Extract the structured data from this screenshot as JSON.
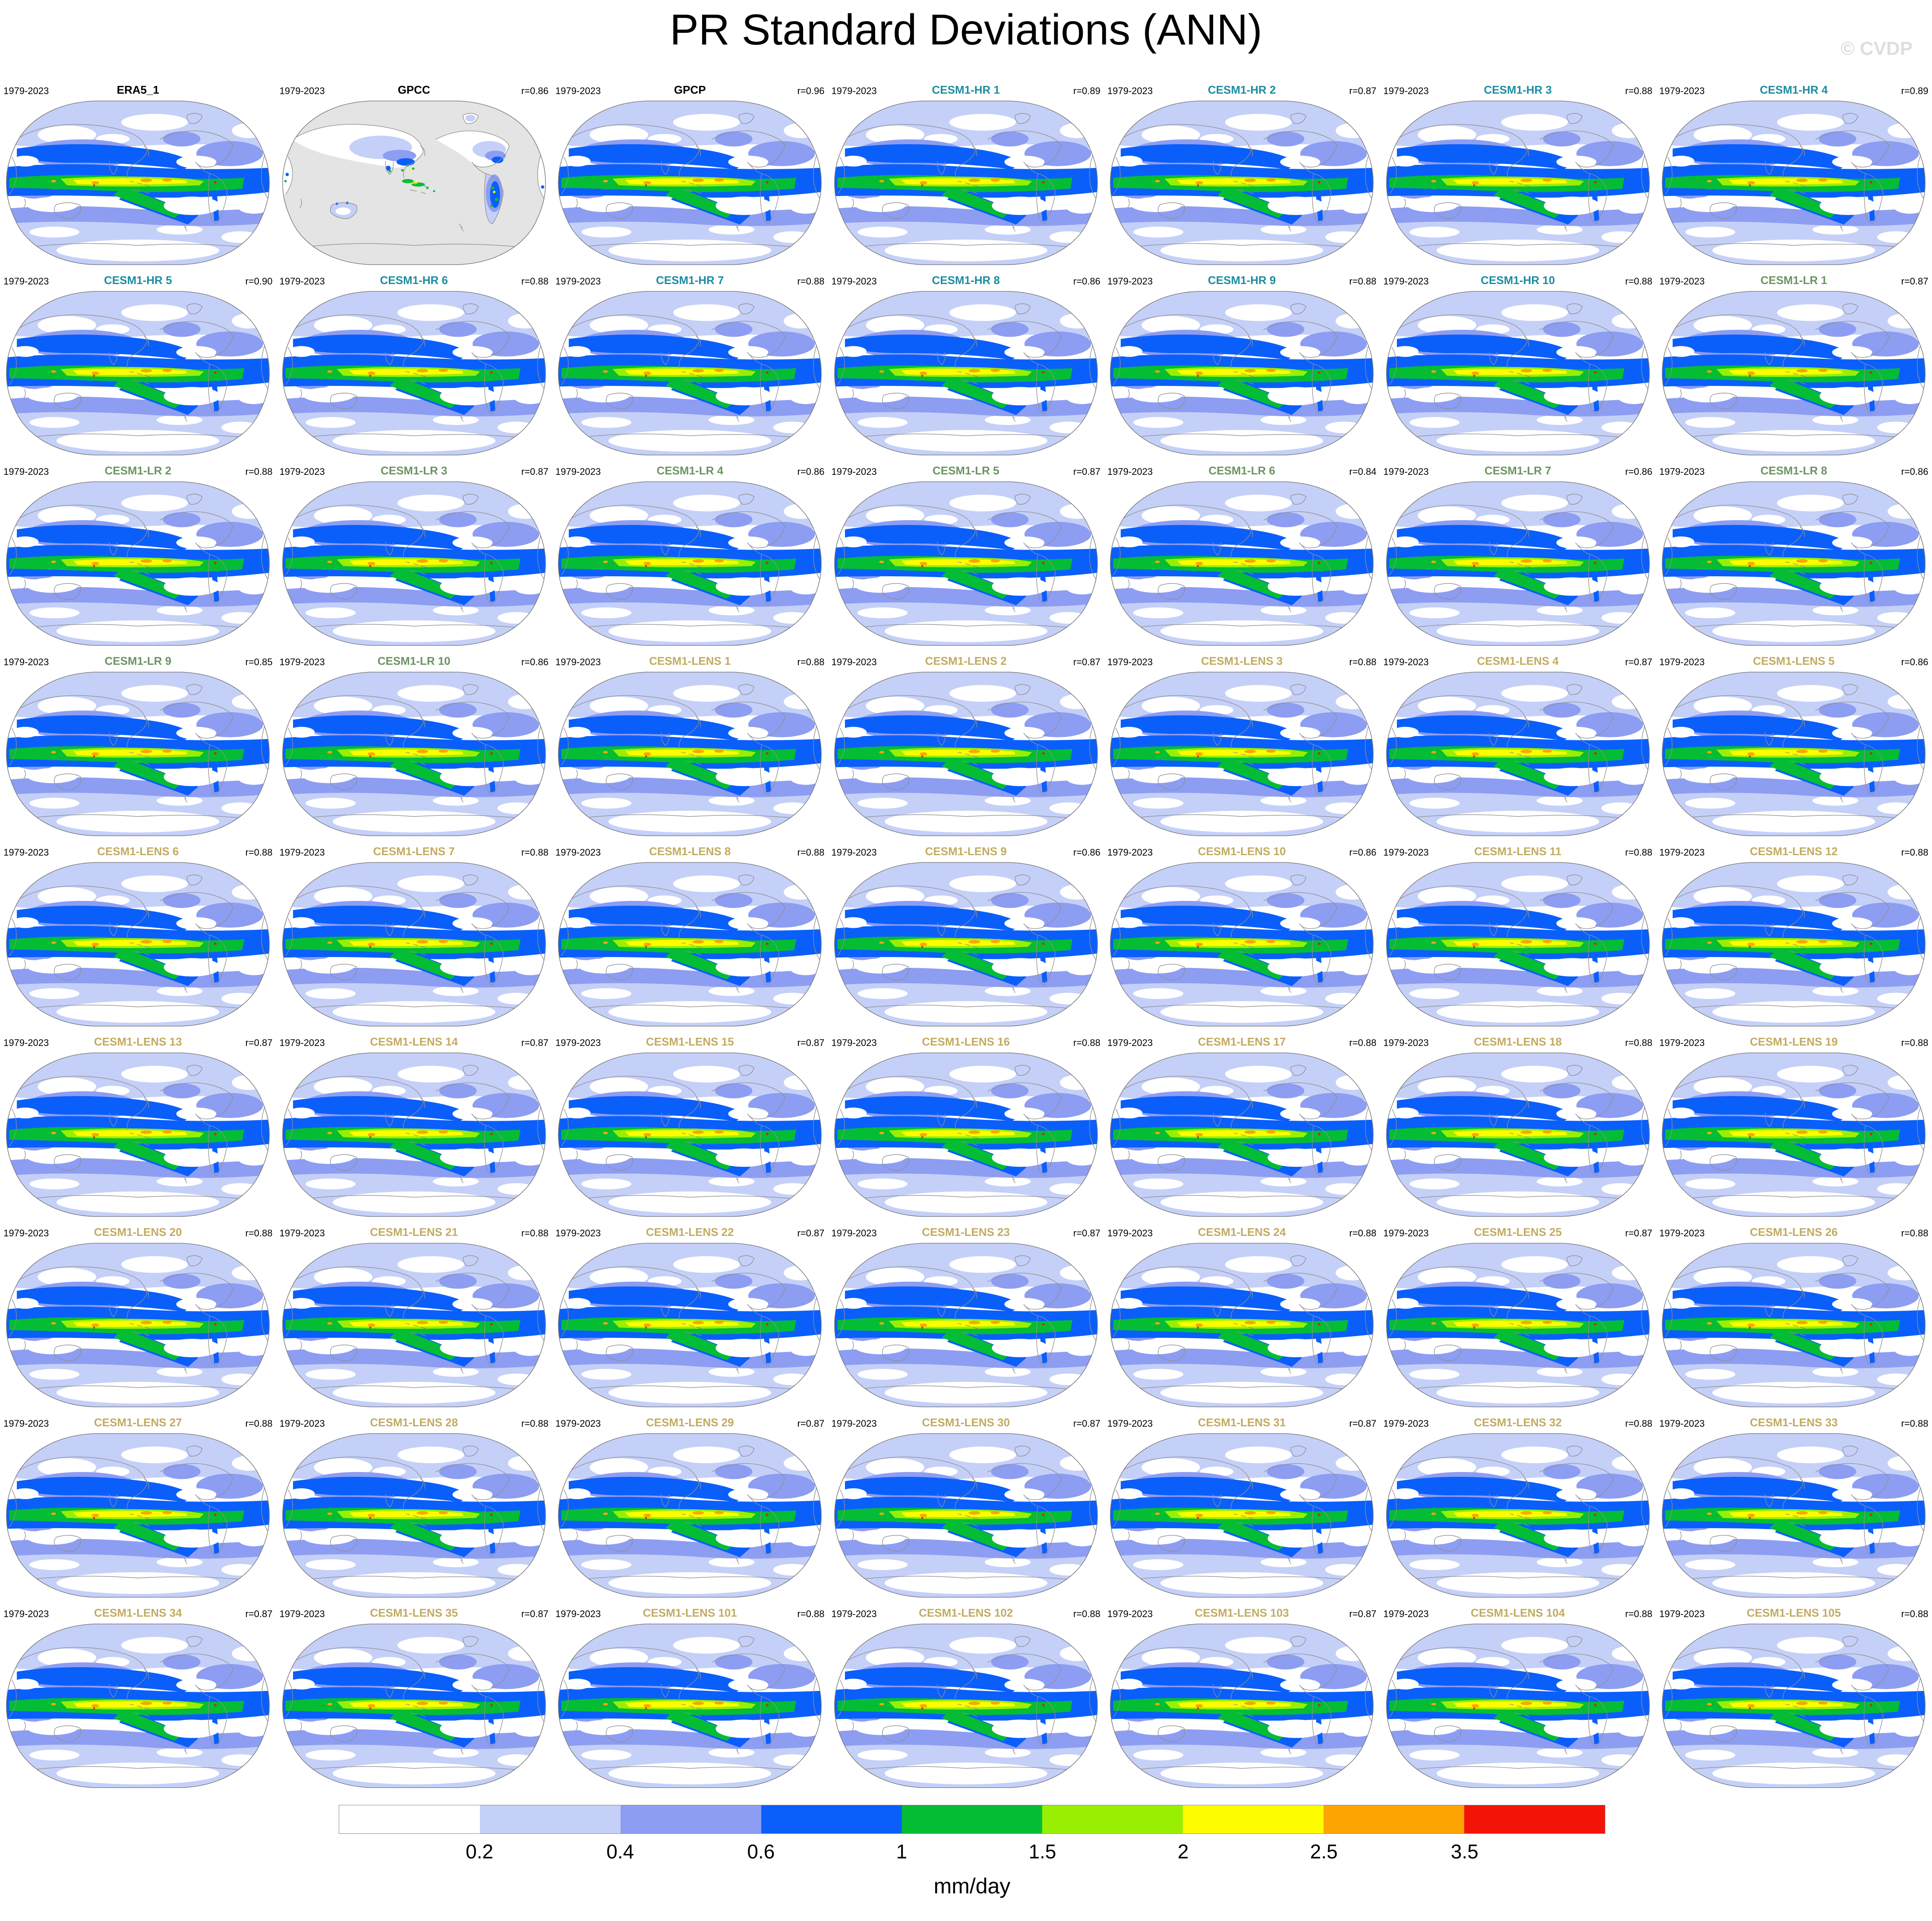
{
  "header": {
    "title": "PR Standard Deviations (ANN)",
    "watermark": "© CVDP"
  },
  "group_colors": {
    "obs": "#000000",
    "hr": "#1d8ca0",
    "lr": "#6b9462",
    "lens": "#c2ab60"
  },
  "map_colors": {
    "ocean_nodata": "#e4e4e4",
    "coastline": "#8f8f8f",
    "outline": "#777777"
  },
  "panels": [
    {
      "label": "ERA5_1",
      "group": "obs",
      "period": "1979-2023",
      "r_text": "",
      "r": null,
      "map_style": "colored"
    },
    {
      "label": "GPCC",
      "group": "obs",
      "period": "1979-2023",
      "r_text": "r=0.86",
      "r": 0.86,
      "map_style": "land"
    },
    {
      "label": "GPCP",
      "group": "obs",
      "period": "1979-2023",
      "r_text": "r=0.96",
      "r": 0.96,
      "map_style": "colored"
    },
    {
      "label": "CESM1-HR 1",
      "group": "hr",
      "period": "1979-2023",
      "r_text": "r=0.89",
      "r": 0.89,
      "map_style": "colored"
    },
    {
      "label": "CESM1-HR 2",
      "group": "hr",
      "period": "1979-2023",
      "r_text": "r=0.87",
      "r": 0.87,
      "map_style": "colored"
    },
    {
      "label": "CESM1-HR 3",
      "group": "hr",
      "period": "1979-2023",
      "r_text": "r=0.88",
      "r": 0.88,
      "map_style": "colored"
    },
    {
      "label": "CESM1-HR 4",
      "group": "hr",
      "period": "1979-2023",
      "r_text": "r=0.89",
      "r": 0.89,
      "map_style": "colored"
    },
    {
      "label": "CESM1-HR 5",
      "group": "hr",
      "period": "1979-2023",
      "r_text": "r=0.90",
      "r": 0.9,
      "map_style": "colored"
    },
    {
      "label": "CESM1-HR 6",
      "group": "hr",
      "period": "1979-2023",
      "r_text": "r=0.88",
      "r": 0.88,
      "map_style": "colored"
    },
    {
      "label": "CESM1-HR 7",
      "group": "hr",
      "period": "1979-2023",
      "r_text": "r=0.88",
      "r": 0.88,
      "map_style": "colored"
    },
    {
      "label": "CESM1-HR 8",
      "group": "hr",
      "period": "1979-2023",
      "r_text": "r=0.86",
      "r": 0.86,
      "map_style": "colored"
    },
    {
      "label": "CESM1-HR 9",
      "group": "hr",
      "period": "1979-2023",
      "r_text": "r=0.88",
      "r": 0.88,
      "map_style": "colored"
    },
    {
      "label": "CESM1-HR 10",
      "group": "hr",
      "period": "1979-2023",
      "r_text": "r=0.88",
      "r": 0.88,
      "map_style": "colored"
    },
    {
      "label": "CESM1-LR 1",
      "group": "lr",
      "period": "1979-2023",
      "r_text": "r=0.87",
      "r": 0.87,
      "map_style": "colored"
    },
    {
      "label": "CESM1-LR 2",
      "group": "lr",
      "period": "1979-2023",
      "r_text": "r=0.88",
      "r": 0.88,
      "map_style": "colored"
    },
    {
      "label": "CESM1-LR 3",
      "group": "lr",
      "period": "1979-2023",
      "r_text": "r=0.87",
      "r": 0.87,
      "map_style": "colored"
    },
    {
      "label": "CESM1-LR 4",
      "group": "lr",
      "period": "1979-2023",
      "r_text": "r=0.86",
      "r": 0.86,
      "map_style": "colored"
    },
    {
      "label": "CESM1-LR 5",
      "group": "lr",
      "period": "1979-2023",
      "r_text": "r=0.87",
      "r": 0.87,
      "map_style": "colored"
    },
    {
      "label": "CESM1-LR 6",
      "group": "lr",
      "period": "1979-2023",
      "r_text": "r=0.84",
      "r": 0.84,
      "map_style": "colored"
    },
    {
      "label": "CESM1-LR 7",
      "group": "lr",
      "period": "1979-2023",
      "r_text": "r=0.86",
      "r": 0.86,
      "map_style": "colored"
    },
    {
      "label": "CESM1-LR 8",
      "group": "lr",
      "period": "1979-2023",
      "r_text": "r=0.86",
      "r": 0.86,
      "map_style": "colored"
    },
    {
      "label": "CESM1-LR 9",
      "group": "lr",
      "period": "1979-2023",
      "r_text": "r=0.85",
      "r": 0.85,
      "map_style": "colored"
    },
    {
      "label": "CESM1-LR 10",
      "group": "lr",
      "period": "1979-2023",
      "r_text": "r=0.86",
      "r": 0.86,
      "map_style": "colored"
    },
    {
      "label": "CESM1-LENS 1",
      "group": "lens",
      "period": "1979-2023",
      "r_text": "r=0.88",
      "r": 0.88,
      "map_style": "colored"
    },
    {
      "label": "CESM1-LENS 2",
      "group": "lens",
      "period": "1979-2023",
      "r_text": "r=0.87",
      "r": 0.87,
      "map_style": "colored"
    },
    {
      "label": "CESM1-LENS 3",
      "group": "lens",
      "period": "1979-2023",
      "r_text": "r=0.88",
      "r": 0.88,
      "map_style": "colored"
    },
    {
      "label": "CESM1-LENS 4",
      "group": "lens",
      "period": "1979-2023",
      "r_text": "r=0.87",
      "r": 0.87,
      "map_style": "colored"
    },
    {
      "label": "CESM1-LENS 5",
      "group": "lens",
      "period": "1979-2023",
      "r_text": "r=0.86",
      "r": 0.86,
      "map_style": "colored"
    },
    {
      "label": "CESM1-LENS 6",
      "group": "lens",
      "period": "1979-2023",
      "r_text": "r=0.88",
      "r": 0.88,
      "map_style": "colored"
    },
    {
      "label": "CESM1-LENS 7",
      "group": "lens",
      "period": "1979-2023",
      "r_text": "r=0.88",
      "r": 0.88,
      "map_style": "colored"
    },
    {
      "label": "CESM1-LENS 8",
      "group": "lens",
      "period": "1979-2023",
      "r_text": "r=0.88",
      "r": 0.88,
      "map_style": "colored"
    },
    {
      "label": "CESM1-LENS 9",
      "group": "lens",
      "period": "1979-2023",
      "r_text": "r=0.86",
      "r": 0.86,
      "map_style": "colored"
    },
    {
      "label": "CESM1-LENS 10",
      "group": "lens",
      "period": "1979-2023",
      "r_text": "r=0.86",
      "r": 0.86,
      "map_style": "colored"
    },
    {
      "label": "CESM1-LENS 11",
      "group": "lens",
      "period": "1979-2023",
      "r_text": "r=0.88",
      "r": 0.88,
      "map_style": "colored"
    },
    {
      "label": "CESM1-LENS 12",
      "group": "lens",
      "period": "1979-2023",
      "r_text": "r=0.88",
      "r": 0.88,
      "map_style": "colored"
    },
    {
      "label": "CESM1-LENS 13",
      "group": "lens",
      "period": "1979-2023",
      "r_text": "r=0.87",
      "r": 0.87,
      "map_style": "colored"
    },
    {
      "label": "CESM1-LENS 14",
      "group": "lens",
      "period": "1979-2023",
      "r_text": "r=0.87",
      "r": 0.87,
      "map_style": "colored"
    },
    {
      "label": "CESM1-LENS 15",
      "group": "lens",
      "period": "1979-2023",
      "r_text": "r=0.87",
      "r": 0.87,
      "map_style": "colored"
    },
    {
      "label": "CESM1-LENS 16",
      "group": "lens",
      "period": "1979-2023",
      "r_text": "r=0.88",
      "r": 0.88,
      "map_style": "colored"
    },
    {
      "label": "CESM1-LENS 17",
      "group": "lens",
      "period": "1979-2023",
      "r_text": "r=0.88",
      "r": 0.88,
      "map_style": "colored"
    },
    {
      "label": "CESM1-LENS 18",
      "group": "lens",
      "period": "1979-2023",
      "r_text": "r=0.88",
      "r": 0.88,
      "map_style": "colored"
    },
    {
      "label": "CESM1-LENS 19",
      "group": "lens",
      "period": "1979-2023",
      "r_text": "r=0.88",
      "r": 0.88,
      "map_style": "colored"
    },
    {
      "label": "CESM1-LENS 20",
      "group": "lens",
      "period": "1979-2023",
      "r_text": "r=0.88",
      "r": 0.88,
      "map_style": "colored"
    },
    {
      "label": "CESM1-LENS 21",
      "group": "lens",
      "period": "1979-2023",
      "r_text": "r=0.88",
      "r": 0.88,
      "map_style": "colored"
    },
    {
      "label": "CESM1-LENS 22",
      "group": "lens",
      "period": "1979-2023",
      "r_text": "r=0.87",
      "r": 0.87,
      "map_style": "colored"
    },
    {
      "label": "CESM1-LENS 23",
      "group": "lens",
      "period": "1979-2023",
      "r_text": "r=0.87",
      "r": 0.87,
      "map_style": "colored"
    },
    {
      "label": "CESM1-LENS 24",
      "group": "lens",
      "period": "1979-2023",
      "r_text": "r=0.88",
      "r": 0.88,
      "map_style": "colored"
    },
    {
      "label": "CESM1-LENS 25",
      "group": "lens",
      "period": "1979-2023",
      "r_text": "r=0.87",
      "r": 0.87,
      "map_style": "colored"
    },
    {
      "label": "CESM1-LENS 26",
      "group": "lens",
      "period": "1979-2023",
      "r_text": "r=0.88",
      "r": 0.88,
      "map_style": "colored"
    },
    {
      "label": "CESM1-LENS 27",
      "group": "lens",
      "period": "1979-2023",
      "r_text": "r=0.88",
      "r": 0.88,
      "map_style": "colored"
    },
    {
      "label": "CESM1-LENS 28",
      "group": "lens",
      "period": "1979-2023",
      "r_text": "r=0.88",
      "r": 0.88,
      "map_style": "colored"
    },
    {
      "label": "CESM1-LENS 29",
      "group": "lens",
      "period": "1979-2023",
      "r_text": "r=0.87",
      "r": 0.87,
      "map_style": "colored"
    },
    {
      "label": "CESM1-LENS 30",
      "group": "lens",
      "period": "1979-2023",
      "r_text": "r=0.87",
      "r": 0.87,
      "map_style": "colored"
    },
    {
      "label": "CESM1-LENS 31",
      "group": "lens",
      "period": "1979-2023",
      "r_text": "r=0.87",
      "r": 0.87,
      "map_style": "colored"
    },
    {
      "label": "CESM1-LENS 32",
      "group": "lens",
      "period": "1979-2023",
      "r_text": "r=0.88",
      "r": 0.88,
      "map_style": "colored"
    },
    {
      "label": "CESM1-LENS 33",
      "group": "lens",
      "period": "1979-2023",
      "r_text": "r=0.88",
      "r": 0.88,
      "map_style": "colored"
    },
    {
      "label": "CESM1-LENS 34",
      "group": "lens",
      "period": "1979-2023",
      "r_text": "r=0.87",
      "r": 0.87,
      "map_style": "colored"
    },
    {
      "label": "CESM1-LENS 35",
      "group": "lens",
      "period": "1979-2023",
      "r_text": "r=0.87",
      "r": 0.87,
      "map_style": "colored"
    },
    {
      "label": "CESM1-LENS 101",
      "group": "lens",
      "period": "1979-2023",
      "r_text": "r=0.88",
      "r": 0.88,
      "map_style": "colored"
    },
    {
      "label": "CESM1-LENS 102",
      "group": "lens",
      "period": "1979-2023",
      "r_text": "r=0.88",
      "r": 0.88,
      "map_style": "colored"
    },
    {
      "label": "CESM1-LENS 103",
      "group": "lens",
      "period": "1979-2023",
      "r_text": "r=0.87",
      "r": 0.87,
      "map_style": "colored"
    },
    {
      "label": "CESM1-LENS 104",
      "group": "lens",
      "period": "1979-2023",
      "r_text": "r=0.88",
      "r": 0.88,
      "map_style": "colored"
    },
    {
      "label": "CESM1-LENS 105",
      "group": "lens",
      "period": "1979-2023",
      "r_text": "r=0.88",
      "r": 0.88,
      "map_style": "colored"
    }
  ],
  "colorbar": {
    "unit": "mm/day",
    "tick_labels": [
      "0.2",
      "0.4",
      "0.6",
      "1",
      "1.5",
      "2",
      "2.5",
      "3.5"
    ],
    "colors": [
      "#ffffff",
      "#c5d0f8",
      "#8d9df2",
      "#0a5ffb",
      "#04bd34",
      "#99ef02",
      "#fdfd00",
      "#fda403",
      "#f31407"
    ],
    "border_color": "#888888"
  },
  "chart_data": {
    "type": "heatmap",
    "title": "PR Standard Deviations (ANN)",
    "subtitle_watermark": "© CVDP",
    "variable": "Precipitation standard deviation",
    "season": "ANN",
    "period": "1979-2023",
    "units": "mm/day",
    "projection": "global map, Pacific-centered",
    "grid_layout": {
      "rows": 9,
      "cols": 7
    },
    "contour_levels": [
      0.2,
      0.4,
      0.6,
      1,
      1.5,
      2,
      2.5,
      3.5
    ],
    "palette": [
      "#ffffff",
      "#c5d0f8",
      "#8d9df2",
      "#0a5ffb",
      "#04bd34",
      "#99ef02",
      "#fdfd00",
      "#fda403",
      "#f31407"
    ],
    "reference_panel": "ERA5_1",
    "series": [
      {
        "name": "ERA5_1",
        "r": null
      },
      {
        "name": "GPCC",
        "r": 0.86
      },
      {
        "name": "GPCP",
        "r": 0.96
      },
      {
        "name": "CESM1-HR 1",
        "r": 0.89
      },
      {
        "name": "CESM1-HR 2",
        "r": 0.87
      },
      {
        "name": "CESM1-HR 3",
        "r": 0.88
      },
      {
        "name": "CESM1-HR 4",
        "r": 0.89
      },
      {
        "name": "CESM1-HR 5",
        "r": 0.9
      },
      {
        "name": "CESM1-HR 6",
        "r": 0.88
      },
      {
        "name": "CESM1-HR 7",
        "r": 0.88
      },
      {
        "name": "CESM1-HR 8",
        "r": 0.86
      },
      {
        "name": "CESM1-HR 9",
        "r": 0.88
      },
      {
        "name": "CESM1-HR 10",
        "r": 0.88
      },
      {
        "name": "CESM1-LR 1",
        "r": 0.87
      },
      {
        "name": "CESM1-LR 2",
        "r": 0.88
      },
      {
        "name": "CESM1-LR 3",
        "r": 0.87
      },
      {
        "name": "CESM1-LR 4",
        "r": 0.86
      },
      {
        "name": "CESM1-LR 5",
        "r": 0.87
      },
      {
        "name": "CESM1-LR 6",
        "r": 0.84
      },
      {
        "name": "CESM1-LR 7",
        "r": 0.86
      },
      {
        "name": "CESM1-LR 8",
        "r": 0.86
      },
      {
        "name": "CESM1-LR 9",
        "r": 0.85
      },
      {
        "name": "CESM1-LR 10",
        "r": 0.86
      },
      {
        "name": "CESM1-LENS 1",
        "r": 0.88
      },
      {
        "name": "CESM1-LENS 2",
        "r": 0.87
      },
      {
        "name": "CESM1-LENS 3",
        "r": 0.88
      },
      {
        "name": "CESM1-LENS 4",
        "r": 0.87
      },
      {
        "name": "CESM1-LENS 5",
        "r": 0.86
      },
      {
        "name": "CESM1-LENS 6",
        "r": 0.88
      },
      {
        "name": "CESM1-LENS 7",
        "r": 0.88
      },
      {
        "name": "CESM1-LENS 8",
        "r": 0.88
      },
      {
        "name": "CESM1-LENS 9",
        "r": 0.86
      },
      {
        "name": "CESM1-LENS 10",
        "r": 0.86
      },
      {
        "name": "CESM1-LENS 11",
        "r": 0.88
      },
      {
        "name": "CESM1-LENS 12",
        "r": 0.88
      },
      {
        "name": "CESM1-LENS 13",
        "r": 0.87
      },
      {
        "name": "CESM1-LENS 14",
        "r": 0.87
      },
      {
        "name": "CESM1-LENS 15",
        "r": 0.87
      },
      {
        "name": "CESM1-LENS 16",
        "r": 0.88
      },
      {
        "name": "CESM1-LENS 17",
        "r": 0.88
      },
      {
        "name": "CESM1-LENS 18",
        "r": 0.88
      },
      {
        "name": "CESM1-LENS 19",
        "r": 0.88
      },
      {
        "name": "CESM1-LENS 20",
        "r": 0.88
      },
      {
        "name": "CESM1-LENS 21",
        "r": 0.88
      },
      {
        "name": "CESM1-LENS 22",
        "r": 0.87
      },
      {
        "name": "CESM1-LENS 23",
        "r": 0.87
      },
      {
        "name": "CESM1-LENS 24",
        "r": 0.88
      },
      {
        "name": "CESM1-LENS 25",
        "r": 0.87
      },
      {
        "name": "CESM1-LENS 26",
        "r": 0.88
      },
      {
        "name": "CESM1-LENS 27",
        "r": 0.88
      },
      {
        "name": "CESM1-LENS 28",
        "r": 0.88
      },
      {
        "name": "CESM1-LENS 29",
        "r": 0.87
      },
      {
        "name": "CESM1-LENS 30",
        "r": 0.87
      },
      {
        "name": "CESM1-LENS 31",
        "r": 0.87
      },
      {
        "name": "CESM1-LENS 32",
        "r": 0.88
      },
      {
        "name": "CESM1-LENS 33",
        "r": 0.88
      },
      {
        "name": "CESM1-LENS 34",
        "r": 0.87
      },
      {
        "name": "CESM1-LENS 35",
        "r": 0.87
      },
      {
        "name": "CESM1-LENS 101",
        "r": 0.88
      },
      {
        "name": "CESM1-LENS 102",
        "r": 0.88
      },
      {
        "name": "CESM1-LENS 103",
        "r": 0.87
      },
      {
        "name": "CESM1-LENS 104",
        "r": 0.88
      },
      {
        "name": "CESM1-LENS 105",
        "r": 0.88
      }
    ]
  }
}
